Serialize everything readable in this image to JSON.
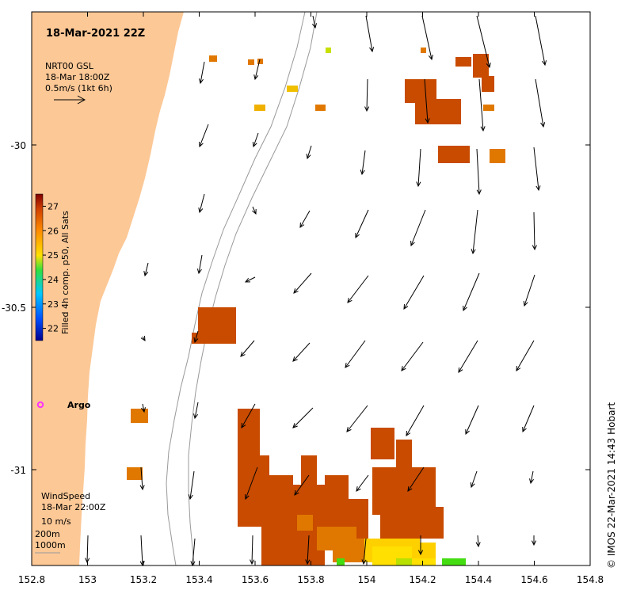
{
  "title": "18-Mar-2021 22Z",
  "current_legend": {
    "line1": "NRT00 GSL",
    "line2": "18-Mar 18:00Z",
    "line3": "0.5m/s (1kt 6h)"
  },
  "wind_legend": {
    "line1": "WindSpeed",
    "line2": "18-Mar 22:00Z",
    "line3": "10 m/s"
  },
  "isobath_legend": {
    "line1": "200m",
    "line2": "1000m"
  },
  "colorbar": {
    "label": "Filled 4h comp. p50, All Sats",
    "ticks": [
      "27",
      "26",
      "25",
      "24",
      "23",
      "22"
    ],
    "min": 21.5,
    "max": 27.5
  },
  "argo_label": "Argo",
  "credit": "© IMOS 22-Mar-2021 14:43 Hobart",
  "x_ticks": [
    "152.8",
    "153",
    "153.2",
    "153.4",
    "153.6",
    "153.8",
    "154",
    "154.2",
    "154.4",
    "154.6",
    "154.8"
  ],
  "y_ticks": [
    "-30",
    "-30.5",
    "-31"
  ],
  "colors": {
    "land": "#fcc896",
    "sst_high": "#c84b00",
    "sst_mid": "#e07800",
    "sst_low": "#ffe000",
    "sst_green": "#44dd11",
    "argo": "#ff33ff"
  }
}
